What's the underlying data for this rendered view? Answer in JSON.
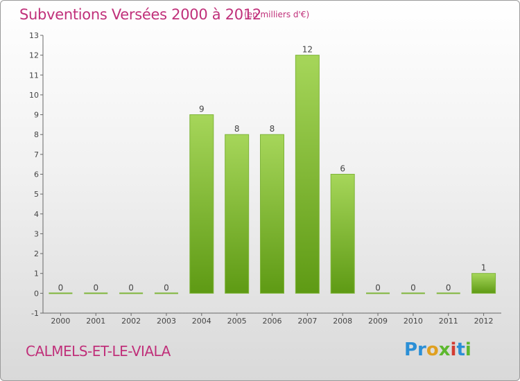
{
  "header": {
    "title": "Subventions Versées 2000 à 2012",
    "unit": "(en milliers d'€)"
  },
  "footer": {
    "commune": "CALMELS-ET-LE-VIALA",
    "logo_text": "Proxiti"
  },
  "colors": {
    "accent": "#c0307a",
    "bar_top": "#a6d65a",
    "bar_bottom": "#5e9a14",
    "axis": "#666666"
  },
  "chart_data": {
    "type": "bar",
    "title": "Subventions Versées 2000 à 2012",
    "subtitle": "(en milliers d'€)",
    "categories": [
      "2000",
      "2001",
      "2002",
      "2003",
      "2004",
      "2005",
      "2006",
      "2007",
      "2008",
      "2009",
      "2010",
      "2011",
      "2012"
    ],
    "values": [
      0,
      0,
      0,
      0,
      9,
      8,
      8,
      12,
      6,
      0,
      0,
      0,
      1
    ],
    "ylim": [
      -1,
      13
    ],
    "yticks": [
      -1,
      0,
      1,
      2,
      3,
      4,
      5,
      6,
      7,
      8,
      9,
      10,
      11,
      12,
      13
    ],
    "grid": false,
    "legend": "none"
  }
}
